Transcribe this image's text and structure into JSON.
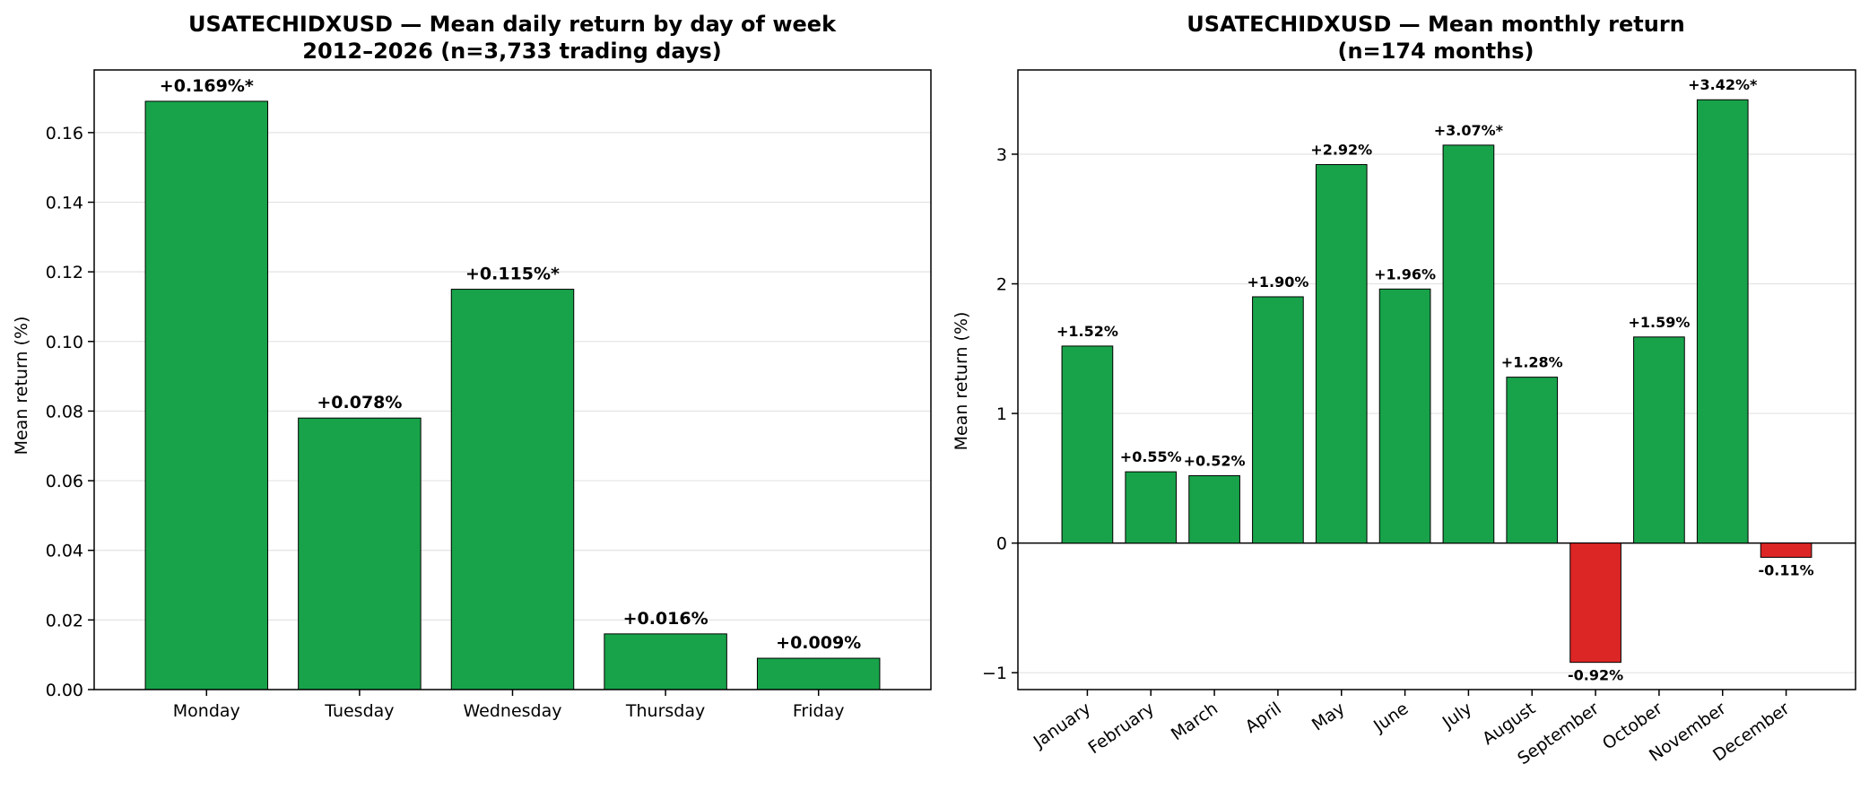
{
  "chart_data": [
    {
      "type": "bar",
      "title": "USATECHIDXUSD — Mean daily return by day of week",
      "subtitle": "2012–2026 (n=3,733 trading days)",
      "xlabel": "",
      "ylabel": "Mean return (%)",
      "categories": [
        "Monday",
        "Tuesday",
        "Wednesday",
        "Thursday",
        "Friday"
      ],
      "values": [
        0.169,
        0.078,
        0.115,
        0.016,
        0.009
      ],
      "data_labels": [
        "+0.169%*",
        "+0.078%",
        "+0.115%*",
        "+0.016%",
        "+0.009%"
      ],
      "ylim": [
        0,
        0.178
      ],
      "yticks": [
        0,
        0.02,
        0.04,
        0.06,
        0.08,
        0.1,
        0.12,
        0.14,
        0.16
      ],
      "ytick_labels": [
        "0.00",
        "0.02",
        "0.04",
        "0.06",
        "0.08",
        "0.10",
        "0.12",
        "0.14",
        "0.16"
      ],
      "grid": "y",
      "colors": {
        "positive": "#18a34a",
        "negative": "#dc2626"
      }
    },
    {
      "type": "bar",
      "title": "USATECHIDXUSD — Mean monthly return",
      "subtitle": "(n=174 months)",
      "xlabel": "",
      "ylabel": "Mean return (%)",
      "categories": [
        "January",
        "February",
        "March",
        "April",
        "May",
        "June",
        "July",
        "August",
        "September",
        "October",
        "November",
        "December"
      ],
      "values": [
        1.52,
        0.55,
        0.52,
        1.9,
        2.92,
        1.96,
        3.07,
        1.28,
        -0.92,
        1.59,
        3.42,
        -0.11
      ],
      "data_labels": [
        "+1.52%",
        "+0.55%",
        "+0.52%",
        "+1.90%",
        "+2.92%",
        "+1.96%",
        "+3.07%*",
        "+1.28%",
        "-0.92%",
        "+1.59%",
        "+3.42%*",
        "-0.11%"
      ],
      "ylim": [
        -1.13,
        3.65
      ],
      "yticks": [
        -1,
        0,
        1,
        2,
        3
      ],
      "ytick_labels": [
        "−1",
        "0",
        "1",
        "2",
        "3"
      ],
      "grid": "y",
      "zero_line": true,
      "colors": {
        "positive": "#18a34a",
        "negative": "#dc2626"
      }
    }
  ]
}
